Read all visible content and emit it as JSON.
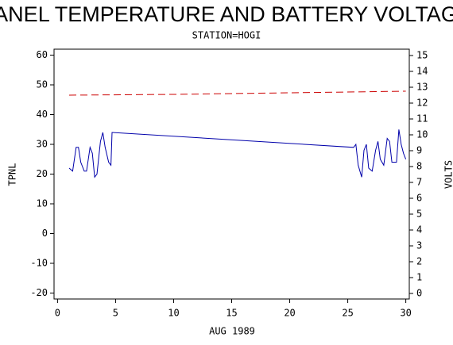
{
  "chart_data": {
    "type": "line",
    "title": "PANEL TEMPERATURE AND BATTERY VOLTAGE",
    "subtitle": "STATION=HOGI",
    "xlabel": "AUG 1989",
    "ylabel": "TPNL",
    "y2label": "VOLTS",
    "xlim": [
      -0.3,
      30.3
    ],
    "xticks": [
      0,
      5,
      10,
      15,
      20,
      25,
      30
    ],
    "ylim": [
      -22,
      62
    ],
    "yticks": [
      -20,
      -10,
      0,
      10,
      20,
      30,
      40,
      50,
      60
    ],
    "y2lim": [
      -0.35,
      15.4
    ],
    "y2ticks": [
      0,
      1,
      2,
      3,
      4,
      5,
      6,
      7,
      8,
      9,
      10,
      11,
      12,
      13,
      14,
      15
    ],
    "series": [
      {
        "name": "TPNL",
        "color": "#0000aa",
        "axis": "y",
        "line_style": "solid",
        "x": [
          1.0,
          1.3,
          1.6,
          1.8,
          2.0,
          2.3,
          2.5,
          2.8,
          3.0,
          3.2,
          3.4,
          3.7,
          3.9,
          4.1,
          4.4,
          4.6,
          4.7,
          25.5,
          25.7,
          25.9,
          26.2,
          26.4,
          26.6,
          26.8,
          27.1,
          27.4,
          27.6,
          27.8,
          28.1,
          28.4,
          28.6,
          28.8,
          29.0,
          29.2,
          29.4,
          29.6,
          29.8,
          30.0
        ],
        "values": [
          22,
          21,
          29,
          29,
          24,
          21,
          21,
          29,
          27,
          19,
          20,
          31,
          34,
          29,
          24,
          23,
          34,
          29,
          30,
          23,
          19,
          28,
          30,
          22,
          21,
          28,
          31,
          25,
          23,
          32,
          31,
          24,
          24,
          24,
          35,
          30,
          27,
          25
        ]
      },
      {
        "name": "VOLTS",
        "color": "#cc0000",
        "axis": "y2",
        "line_style": "dashed",
        "x": [
          1,
          10,
          20,
          30
        ],
        "values": [
          12.5,
          12.55,
          12.65,
          12.75
        ]
      }
    ]
  }
}
